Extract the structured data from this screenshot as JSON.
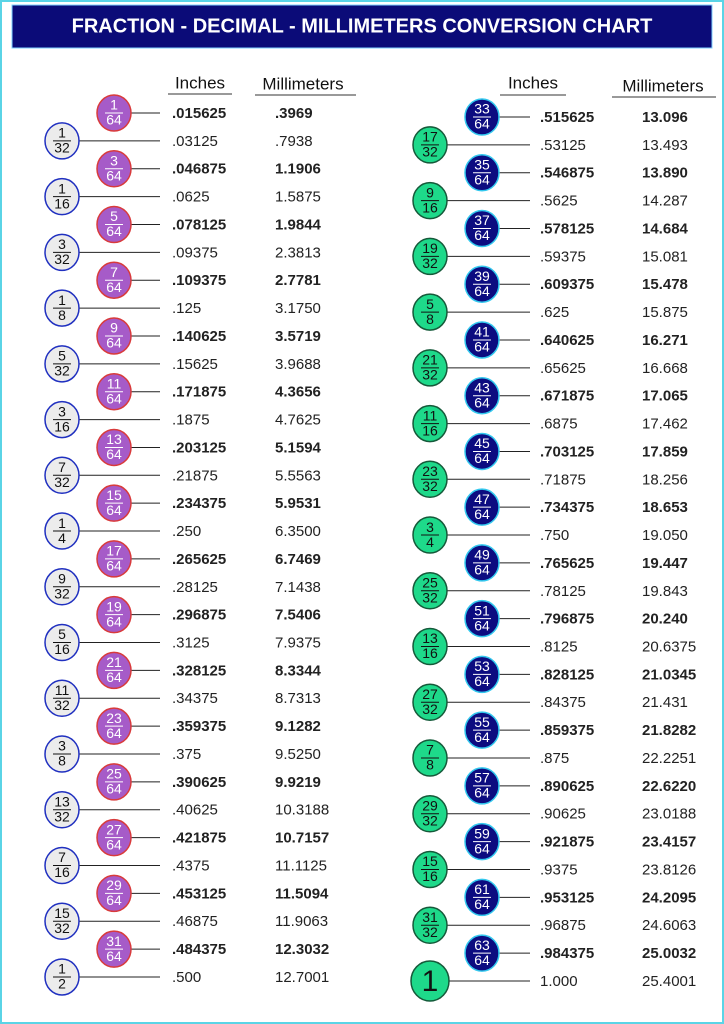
{
  "header": {
    "title": "FRACTION - DECIMAL - MILLIMETERS CONVERSION CHART"
  },
  "left": {
    "inches_label": "Inches",
    "mm_label": "Millimeters",
    "rows": [
      [
        [
          "1",
          "64"
        ],
        ".015625",
        ".3969"
      ],
      [
        [
          "1",
          "32"
        ],
        ".03125",
        ".7938"
      ],
      [
        [
          "3",
          "64"
        ],
        ".046875",
        "1.1906"
      ],
      [
        [
          "1",
          "16"
        ],
        ".0625",
        "1.5875"
      ],
      [
        [
          "5",
          "64"
        ],
        ".078125",
        "1.9844"
      ],
      [
        [
          "3",
          "32"
        ],
        ".09375",
        "2.3813"
      ],
      [
        [
          "7",
          "64"
        ],
        ".109375",
        "2.7781"
      ],
      [
        [
          "1",
          "8"
        ],
        ".125",
        "3.1750"
      ],
      [
        [
          "9",
          "64"
        ],
        ".140625",
        "3.5719"
      ],
      [
        [
          "5",
          "32"
        ],
        ".15625",
        "3.9688"
      ],
      [
        [
          "11",
          "64"
        ],
        ".171875",
        "4.3656"
      ],
      [
        [
          "3",
          "16"
        ],
        ".1875",
        "4.7625"
      ],
      [
        [
          "13",
          "64"
        ],
        ".203125",
        "5.1594"
      ],
      [
        [
          "7",
          "32"
        ],
        ".21875",
        "5.5563"
      ],
      [
        [
          "15",
          "64"
        ],
        ".234375",
        "5.9531"
      ],
      [
        [
          "1",
          "4"
        ],
        ".250",
        "6.3500"
      ],
      [
        [
          "17",
          "64"
        ],
        ".265625",
        "6.7469"
      ],
      [
        [
          "9",
          "32"
        ],
        ".28125",
        "7.1438"
      ],
      [
        [
          "19",
          "64"
        ],
        ".296875",
        "7.5406"
      ],
      [
        [
          "5",
          "16"
        ],
        ".3125",
        "7.9375"
      ],
      [
        [
          "21",
          "64"
        ],
        ".328125",
        "8.3344"
      ],
      [
        [
          "11",
          "32"
        ],
        ".34375",
        "8.7313"
      ],
      [
        [
          "23",
          "64"
        ],
        ".359375",
        "9.1282"
      ],
      [
        [
          "3",
          "8"
        ],
        ".375",
        "9.5250"
      ],
      [
        [
          "25",
          "64"
        ],
        ".390625",
        "9.9219"
      ],
      [
        [
          "13",
          "32"
        ],
        ".40625",
        "10.3188"
      ],
      [
        [
          "27",
          "64"
        ],
        ".421875",
        "10.7157"
      ],
      [
        [
          "7",
          "16"
        ],
        ".4375",
        "11.1125"
      ],
      [
        [
          "29",
          "64"
        ],
        ".453125",
        "11.5094"
      ],
      [
        [
          "15",
          "32"
        ],
        ".46875",
        "11.9063"
      ],
      [
        [
          "31",
          "64"
        ],
        ".484375",
        "12.3032"
      ],
      [
        [
          "1",
          "2"
        ],
        ".500",
        "12.7001"
      ]
    ]
  },
  "right": {
    "inches_label": "Inches",
    "mm_label": "Millimeters",
    "rows": [
      [
        [
          "33",
          "64"
        ],
        ".515625",
        "13.096"
      ],
      [
        [
          "17",
          "32"
        ],
        ".53125",
        "13.493"
      ],
      [
        [
          "35",
          "64"
        ],
        ".546875",
        "13.890"
      ],
      [
        [
          "9",
          "16"
        ],
        ".5625",
        "14.287"
      ],
      [
        [
          "37",
          "64"
        ],
        ".578125",
        "14.684"
      ],
      [
        [
          "19",
          "32"
        ],
        ".59375",
        "15.081"
      ],
      [
        [
          "39",
          "64"
        ],
        ".609375",
        "15.478"
      ],
      [
        [
          "5",
          "8"
        ],
        ".625",
        "15.875"
      ],
      [
        [
          "41",
          "64"
        ],
        ".640625",
        "16.271"
      ],
      [
        [
          "21",
          "32"
        ],
        ".65625",
        "16.668"
      ],
      [
        [
          "43",
          "64"
        ],
        ".671875",
        "17.065"
      ],
      [
        [
          "11",
          "16"
        ],
        ".6875",
        "17.462"
      ],
      [
        [
          "45",
          "64"
        ],
        ".703125",
        "17.859"
      ],
      [
        [
          "23",
          "32"
        ],
        ".71875",
        "18.256"
      ],
      [
        [
          "47",
          "64"
        ],
        ".734375",
        "18.653"
      ],
      [
        [
          "3",
          "4"
        ],
        ".750",
        "19.050"
      ],
      [
        [
          "49",
          "64"
        ],
        ".765625",
        "19.447"
      ],
      [
        [
          "25",
          "32"
        ],
        ".78125",
        "19.843"
      ],
      [
        [
          "51",
          "64"
        ],
        ".796875",
        "20.240"
      ],
      [
        [
          "13",
          "16"
        ],
        ".8125",
        "20.6375"
      ],
      [
        [
          "53",
          "64"
        ],
        ".828125",
        "21.0345"
      ],
      [
        [
          "27",
          "32"
        ],
        ".84375",
        "21.431"
      ],
      [
        [
          "55",
          "64"
        ],
        ".859375",
        "21.8282"
      ],
      [
        [
          "7",
          "8"
        ],
        ".875",
        "22.2251"
      ],
      [
        [
          "57",
          "64"
        ],
        ".890625",
        "22.6220"
      ],
      [
        [
          "29",
          "32"
        ],
        ".90625",
        "23.0188"
      ],
      [
        [
          "59",
          "64"
        ],
        ".921875",
        "23.4157"
      ],
      [
        [
          "15",
          "16"
        ],
        ".9375",
        "23.8126"
      ],
      [
        [
          "61",
          "64"
        ],
        ".953125",
        "24.2095"
      ],
      [
        [
          "31",
          "32"
        ],
        ".96875",
        "24.6063"
      ],
      [
        [
          "63",
          "64"
        ],
        ".984375",
        "25.0032"
      ],
      [
        [
          "1"
        ],
        "1.000",
        "25.4001"
      ]
    ]
  }
}
